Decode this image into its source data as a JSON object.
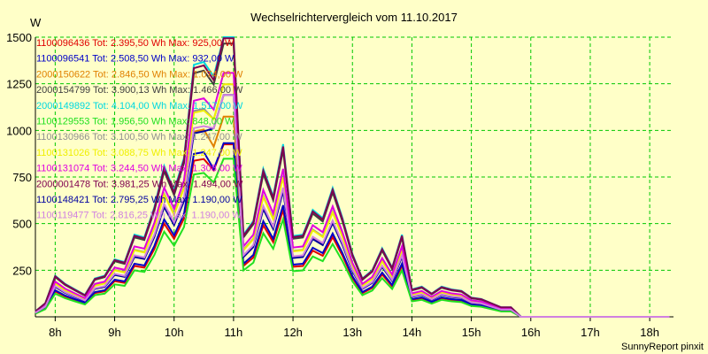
{
  "chart_data": {
    "type": "line",
    "title": "Wechselrichtervergleich vom 11.10.2017",
    "ylabel": "W",
    "footer": "SunnyReport pinxit",
    "ylim": [
      0,
      1500
    ],
    "yticks": [
      250,
      500,
      750,
      1000,
      1250,
      1500
    ],
    "xlim": [
      7.667,
      18.4
    ],
    "xticks": [
      {
        "x": 8,
        "label": "8h"
      },
      {
        "x": 9,
        "label": "9h"
      },
      {
        "x": 10,
        "label": "10h"
      },
      {
        "x": 11,
        "label": "11h"
      },
      {
        "x": 12,
        "label": "12h"
      },
      {
        "x": 13,
        "label": "13h"
      },
      {
        "x": 14,
        "label": "14h"
      },
      {
        "x": 15,
        "label": "15h"
      },
      {
        "x": 16,
        "label": "16h"
      },
      {
        "x": 17,
        "label": "17h"
      },
      {
        "x": 18,
        "label": "18h"
      }
    ],
    "grid": true,
    "x": [
      7.667,
      7.833,
      8.0,
      8.167,
      8.333,
      8.5,
      8.667,
      8.833,
      9.0,
      9.167,
      9.333,
      9.5,
      9.667,
      9.833,
      10.0,
      10.167,
      10.333,
      10.5,
      10.667,
      10.833,
      11.0,
      11.167,
      11.333,
      11.5,
      11.667,
      11.833,
      12.0,
      12.167,
      12.333,
      12.5,
      12.667,
      12.833,
      13.0,
      13.167,
      13.333,
      13.5,
      13.667,
      13.833,
      14.0,
      14.167,
      14.333,
      14.5,
      14.667,
      14.833,
      15.0,
      15.167,
      15.333,
      15.5,
      15.667,
      15.833,
      16.0,
      16.167,
      16.333,
      16.5,
      16.667,
      16.833,
      17.0,
      17.167,
      17.333,
      17.5,
      17.667,
      17.833,
      18.0,
      18.167,
      18.333
    ],
    "base_profile": [
      20,
      50,
      150,
      120,
      100,
      80,
      140,
      150,
      210,
      200,
      300,
      290,
      400,
      550,
      460,
      580,
      920,
      930,
      240,
      240,
      380,
      300,
      350,
      540,
      440,
      630,
      295,
      300,
      390,
      360,
      470,
      360,
      230,
      140,
      170,
      250,
      180,
      300,
      100,
      110,
      85,
      110,
      100,
      95,
      70,
      65,
      50,
      35,
      35,
      0,
      0,
      0,
      0,
      0,
      0,
      0,
      0,
      0,
      0,
      0,
      0,
      0,
      0,
      0,
      0
    ],
    "series": [
      {
        "name": "1100096436 Tot: 2.395,50 Wh Max: 925,00 W",
        "color": "#e00000",
        "scale": 0.91,
        "max": 925
      },
      {
        "name": "1100096541 Tot: 2.508,50 Wh Max: 932,00 W",
        "color": "#0000c8",
        "scale": 0.95,
        "max": 932
      },
      {
        "name": "2000150622 Tot: 2.846,50 Wh Max: 1.074,00 W",
        "color": "#e08000",
        "scale": 1.08,
        "max": 1074
      },
      {
        "name": "2000154799 Tot: 3.900,13 Wh Max: 1.466,00 W",
        "color": "#404040",
        "scale": 1.42,
        "max": 1466
      },
      {
        "name": "2000149892 Tot: 4.104,00 Wh Max: 1.517,00 W",
        "color": "#00d8e0",
        "scale": 1.47,
        "max": 1517
      },
      {
        "name": "1100129553 Tot: 1.956,50 Wh Max: 848,00 W",
        "color": "#20e020",
        "scale": 0.83,
        "max": 848
      },
      {
        "name": "1100130966 Tot: 3.100,50 Wh Max: 1.247,00 W",
        "color": "#909090",
        "scale": 1.2,
        "max": 1247
      },
      {
        "name": "1100131026 Tot: 3.088,75 Wh Max: 1.247,00 W",
        "color": "#f0f000",
        "scale": 1.19,
        "max": 1247
      },
      {
        "name": "1100131074 Tot: 3.244,50 Wh Max: 1.308,00 W",
        "color": "#e000e0",
        "scale": 1.26,
        "max": 1308
      },
      {
        "name": "2000001478 Tot: 3.981,25 Wh Max: 1.494,00 W",
        "color": "#800050",
        "scale": 1.45,
        "max": 1494
      },
      {
        "name": "1100148421 Tot: 2.795,25 Wh Max: 1.190,00 W",
        "color": "#0000a0",
        "scale": 1.07,
        "max": 1190
      },
      {
        "name": "1100119477 Tot: 2.816,25 Wh Max: 1.190,00 W",
        "color": "#d080e0",
        "scale": 1.1,
        "max": 1190
      }
    ]
  }
}
